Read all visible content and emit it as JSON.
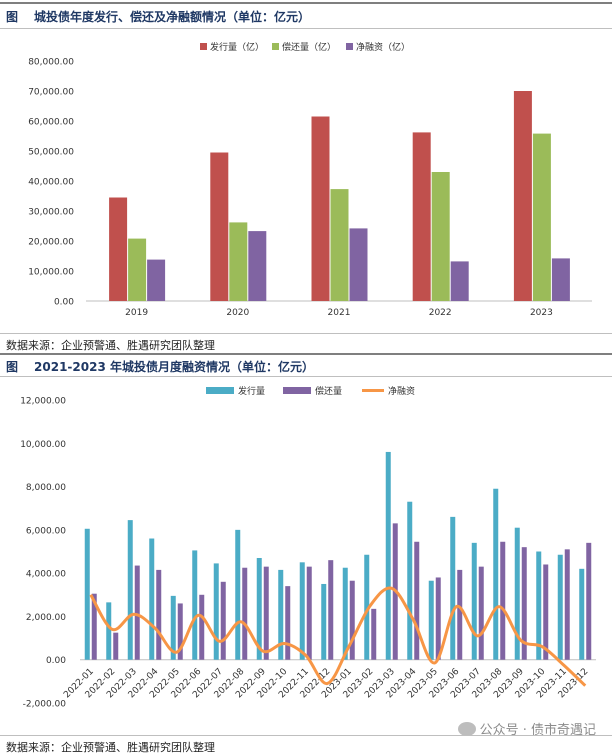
{
  "figure1": {
    "label": "图",
    "title": "城投债年度发行、偿还及净融额情况（单位：亿元）",
    "source": "数据来源：企业预警通、胜遇研究团队整理"
  },
  "figure2": {
    "label": "图",
    "title": "2021-2023 年城投债月度融资情况（单位：亿元）",
    "source": "数据来源：企业预警通、胜遇研究团队整理"
  },
  "watermark": {
    "text": "公众号 · 债市奇遇记",
    "icon": "wechat-icon"
  },
  "colors": {
    "issue": "#c0504d",
    "repay": "#9bbb59",
    "net": "#8064a2",
    "issue_monthly": "#4bacc6",
    "repay_monthly": "#8064a2",
    "net_monthly": "#f79646"
  },
  "chart_data": [
    {
      "type": "bar",
      "title": "城投债年度发行、偿还及净融额情况（单位：亿元）",
      "categories": [
        "2019",
        "2020",
        "2021",
        "2022",
        "2023"
      ],
      "series": [
        {
          "name": "发行量（亿）",
          "values": [
            34500,
            49500,
            61500,
            56200,
            70000
          ]
        },
        {
          "name": "偿还量（亿）",
          "values": [
            20800,
            26200,
            37300,
            43000,
            55800
          ]
        },
        {
          "name": "净融资（亿）",
          "values": [
            13800,
            23300,
            24200,
            13200,
            14200
          ]
        }
      ],
      "yticks": [
        "0.00",
        "10,000.00",
        "20,000.00",
        "30,000.00",
        "40,000.00",
        "50,000.00",
        "60,000.00",
        "70,000.00",
        "80,000.00"
      ],
      "ylim": [
        0,
        80000
      ],
      "legend": "top-center",
      "xlabel": "",
      "ylabel": "",
      "grid": false
    },
    {
      "type": "bar",
      "title": "2021-2023 年城投债月度融资情况（单位：亿元）",
      "categories": [
        "2022-01",
        "2022-02",
        "2022-03",
        "2022-04",
        "2022-05",
        "2022-06",
        "2022-07",
        "2022-08",
        "2022-09",
        "2022-10",
        "2022-11",
        "2022-12",
        "2023-01",
        "2023-02",
        "2023-03",
        "2023-04",
        "2023-05",
        "2023-06",
        "2023-07",
        "2023-08",
        "2023-09",
        "2023-10",
        "2023-11",
        "2023-12"
      ],
      "series": [
        {
          "name": "发行量",
          "kind": "bar",
          "values": [
            6050,
            2650,
            6450,
            5600,
            2950,
            5050,
            4450,
            6000,
            4700,
            4150,
            4500,
            3500,
            4250,
            4850,
            9600,
            7300,
            3650,
            6600,
            5400,
            7900,
            6100,
            5000,
            4850,
            4200
          ]
        },
        {
          "name": "偿还量",
          "kind": "bar",
          "values": [
            3050,
            1250,
            4350,
            4150,
            2600,
            3000,
            3600,
            4250,
            4300,
            3400,
            4300,
            4600,
            3650,
            2350,
            6300,
            5450,
            3800,
            4150,
            4300,
            5450,
            5200,
            4400,
            5100,
            5400
          ]
        },
        {
          "name": "净融资",
          "kind": "line",
          "values": [
            3000,
            1400,
            2100,
            1450,
            350,
            2050,
            850,
            1750,
            400,
            750,
            200,
            -1100,
            600,
            2500,
            3300,
            1850,
            -150,
            2450,
            1100,
            2450,
            900,
            600,
            -250,
            -1200
          ]
        }
      ],
      "yticks": [
        "-2,000.00",
        "0.00",
        "2,000.00",
        "4,000.00",
        "6,000.00",
        "8,000.00",
        "10,000.00",
        "12,000.00"
      ],
      "ylim": [
        -2000,
        12000
      ],
      "legend": "top-center",
      "xlabel": "",
      "ylabel": "",
      "grid": false
    }
  ]
}
